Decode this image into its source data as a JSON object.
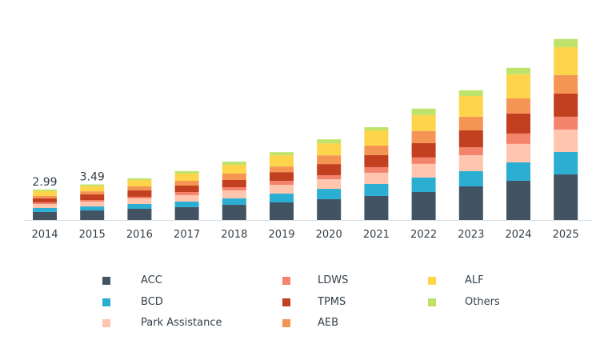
{
  "chart_data": {
    "type": "bar",
    "stacked": true,
    "categories": [
      "2014",
      "2015",
      "2016",
      "2017",
      "2018",
      "2019",
      "2020",
      "2021",
      "2022",
      "2023",
      "2024",
      "2025"
    ],
    "series": [
      {
        "name": "ACC",
        "color": "#425464",
        "values": [
          0.79,
          0.94,
          1.1,
          1.26,
          1.49,
          1.73,
          2.04,
          2.36,
          2.75,
          3.3,
          3.85,
          4.48
        ]
      },
      {
        "name": "BCD",
        "color": "#2aafd3",
        "values": [
          0.39,
          0.39,
          0.47,
          0.55,
          0.63,
          0.86,
          1.02,
          1.18,
          1.42,
          1.49,
          1.81,
          2.2
        ]
      },
      {
        "name": "Park Assistance",
        "color": "#ffc5ae",
        "values": [
          0.39,
          0.47,
          0.55,
          0.63,
          0.79,
          0.86,
          0.94,
          1.1,
          1.34,
          1.57,
          1.81,
          2.2
        ]
      },
      {
        "name": "LDWS",
        "color": "#f4836c",
        "values": [
          0.16,
          0.16,
          0.16,
          0.31,
          0.31,
          0.39,
          0.39,
          0.55,
          0.63,
          0.79,
          1.02,
          1.26
        ]
      },
      {
        "name": "TPMS",
        "color": "#c23f20",
        "values": [
          0.39,
          0.55,
          0.63,
          0.63,
          0.71,
          0.86,
          1.1,
          1.18,
          1.42,
          1.65,
          1.97,
          2.28
        ]
      },
      {
        "name": "AEB",
        "color": "#f59553",
        "values": [
          0.24,
          0.31,
          0.39,
          0.47,
          0.63,
          0.55,
          0.86,
          0.94,
          1.18,
          1.34,
          1.49,
          1.81
        ]
      },
      {
        "name": "ALF",
        "color": "#fed54a",
        "values": [
          0.47,
          0.51,
          0.63,
          0.71,
          0.86,
          1.1,
          1.18,
          1.49,
          1.57,
          2.04,
          2.36,
          2.75
        ]
      },
      {
        "name": "Others",
        "color": "#bde36a",
        "values": [
          0.16,
          0.16,
          0.16,
          0.24,
          0.31,
          0.31,
          0.39,
          0.31,
          0.63,
          0.55,
          0.63,
          0.79
        ]
      }
    ],
    "data_labels": [
      {
        "category": "2014",
        "text": "2.99"
      },
      {
        "category": "2015",
        "text": "3.49"
      }
    ],
    "title": "",
    "xlabel": "",
    "ylabel": "",
    "ylim": [
      0,
      21.6
    ],
    "grid": false,
    "legend_position": "bottom"
  }
}
